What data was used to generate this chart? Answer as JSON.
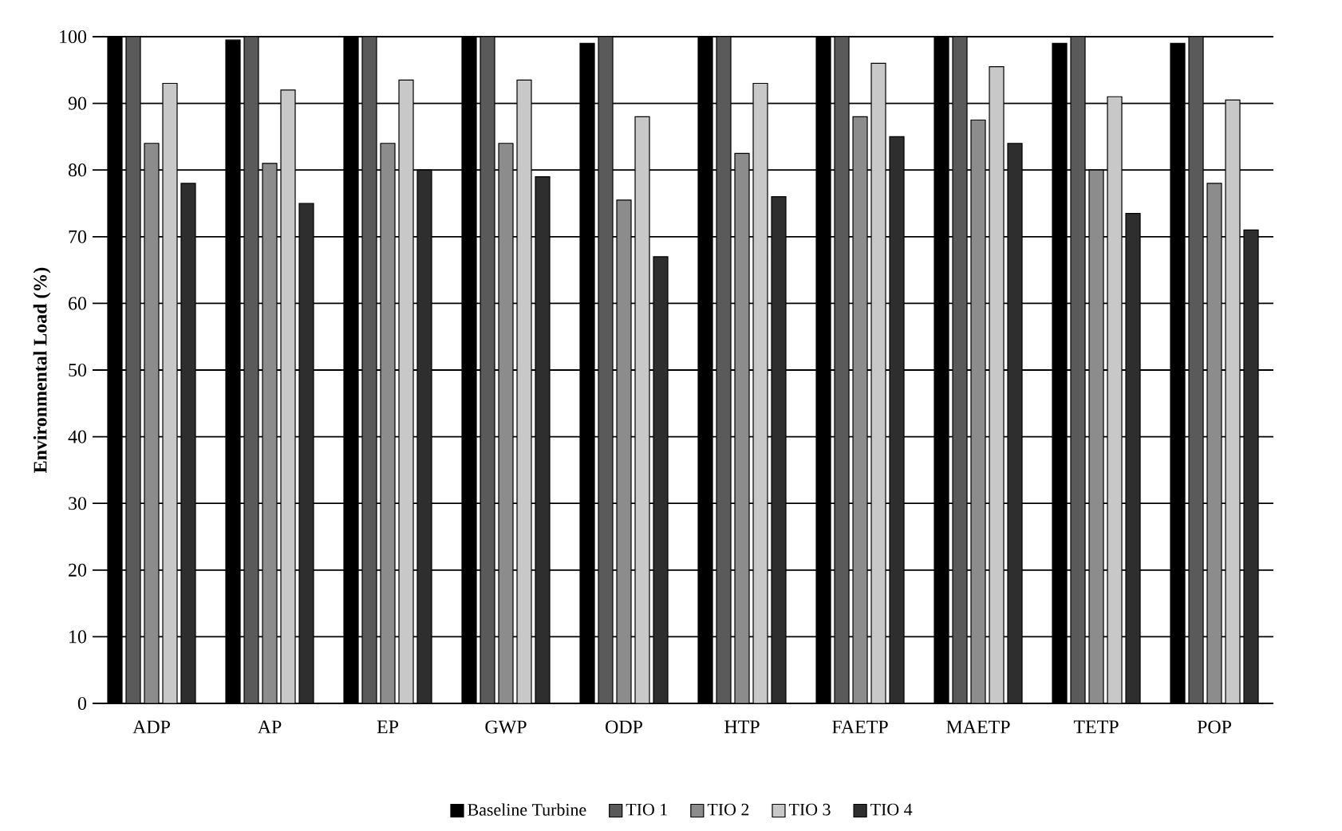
{
  "chart_data": {
    "type": "bar",
    "ylabel": "Environmental Load (%)",
    "categories": [
      "ADP",
      "AP",
      "EP",
      "GWP",
      "ODP",
      "HTP",
      "FAETP",
      "MAETP",
      "TETP",
      "POP"
    ],
    "series": [
      {
        "name": "Baseline Turbine",
        "color": "#000000",
        "values": [
          100,
          99.5,
          100,
          100,
          99,
          100,
          100,
          100,
          99,
          99
        ]
      },
      {
        "name": "TIO 1",
        "color": "#5a5a5a",
        "values": [
          100,
          100,
          100,
          100,
          100,
          100,
          100,
          100,
          100,
          100
        ]
      },
      {
        "name": "TIO 2",
        "color": "#8c8c8c",
        "values": [
          84,
          81,
          84,
          84,
          75.5,
          82.5,
          88,
          87.5,
          80,
          78
        ]
      },
      {
        "name": "TIO 3",
        "color": "#c8c8c8",
        "values": [
          93,
          92,
          93.5,
          93.5,
          88,
          93,
          96,
          95.5,
          91,
          90.5
        ]
      },
      {
        "name": "TIO 4",
        "color": "#2e2e2e",
        "values": [
          78,
          75,
          80,
          79,
          67,
          76,
          85,
          84,
          73.5,
          71
        ]
      }
    ],
    "ylim": [
      0,
      100
    ],
    "yticks": [
      0,
      10,
      20,
      30,
      40,
      50,
      60,
      70,
      80,
      90,
      100
    ],
    "grid": "y",
    "legend": "bottom"
  }
}
